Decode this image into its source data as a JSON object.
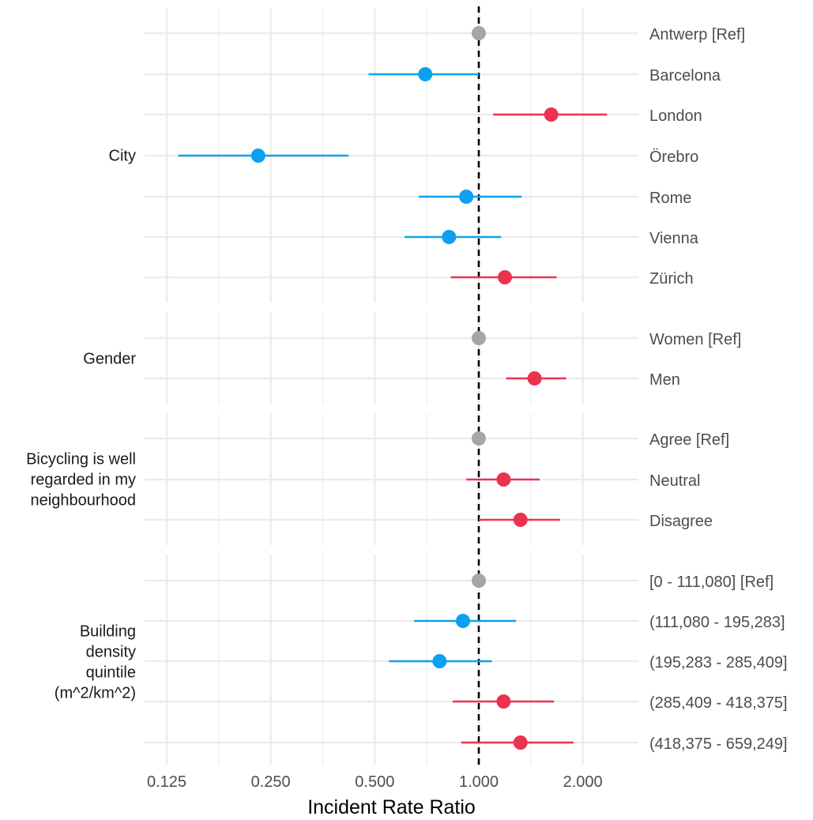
{
  "chart_data": {
    "type": "forest",
    "xlabel": "Incident Rate Ratio",
    "x_scale": "log2",
    "xlim": [
      0.11,
      3.5
    ],
    "x_ticks": [
      {
        "value": 0.125,
        "label": "0.125"
      },
      {
        "value": 0.25,
        "label": "0.250"
      },
      {
        "value": 0.5,
        "label": "0.500"
      },
      {
        "value": 1.0,
        "label": "1.000"
      },
      {
        "value": 2.0,
        "label": "2.000"
      }
    ],
    "reference_line": 1.0,
    "grid": true,
    "colors": {
      "reference": "#A6A6A6",
      "increase": "#EB3350",
      "decrease": "#0EA0F0",
      "grid": "#EBEBEB"
    },
    "groups": [
      {
        "label_lines": [
          "City"
        ],
        "rows": [
          {
            "label": "Antwerp [Ref]",
            "estimate": 1.0,
            "lower": null,
            "upper": null,
            "direction": "reference"
          },
          {
            "label": "Barcelona",
            "estimate": 0.7,
            "lower": 0.48,
            "upper": 1.0,
            "direction": "decrease"
          },
          {
            "label": "London",
            "estimate": 1.62,
            "lower": 1.1,
            "upper": 2.35,
            "direction": "increase"
          },
          {
            "label": "Örebro",
            "estimate": 0.23,
            "lower": 0.135,
            "upper": 0.42,
            "direction": "decrease"
          },
          {
            "label": "Rome",
            "estimate": 0.92,
            "lower": 0.67,
            "upper": 1.33,
            "direction": "decrease"
          },
          {
            "label": "Vienna",
            "estimate": 0.82,
            "lower": 0.61,
            "upper": 1.16,
            "direction": "decrease"
          },
          {
            "label": "Zürich",
            "estimate": 1.19,
            "lower": 0.83,
            "upper": 1.68,
            "direction": "increase"
          }
        ]
      },
      {
        "label_lines": [
          "Gender"
        ],
        "rows": [
          {
            "label": "Women [Ref]",
            "estimate": 1.0,
            "lower": null,
            "upper": null,
            "direction": "reference"
          },
          {
            "label": "Men",
            "estimate": 1.45,
            "lower": 1.2,
            "upper": 1.79,
            "direction": "increase"
          }
        ]
      },
      {
        "label_lines": [
          "Bicycling is well",
          "regarded in my",
          "neighbourhood"
        ],
        "rows": [
          {
            "label": "Agree [Ref]",
            "estimate": 1.0,
            "lower": null,
            "upper": null,
            "direction": "reference"
          },
          {
            "label": "Neutral",
            "estimate": 1.18,
            "lower": 0.92,
            "upper": 1.5,
            "direction": "increase"
          },
          {
            "label": "Disagree",
            "estimate": 1.32,
            "lower": 1.0,
            "upper": 1.72,
            "direction": "increase"
          }
        ]
      },
      {
        "label_lines": [
          "Building",
          "density",
          "quintile",
          "(m^2/km^2)"
        ],
        "rows": [
          {
            "label": "[0 - 111,080] [Ref]",
            "estimate": 1.0,
            "lower": null,
            "upper": null,
            "direction": "reference"
          },
          {
            "label": "(111,080 - 195,283]",
            "estimate": 0.9,
            "lower": 0.65,
            "upper": 1.28,
            "direction": "decrease"
          },
          {
            "label": "(195,283 - 285,409]",
            "estimate": 0.77,
            "lower": 0.55,
            "upper": 1.09,
            "direction": "decrease"
          },
          {
            "label": "(285,409 - 418,375]",
            "estimate": 1.18,
            "lower": 0.84,
            "upper": 1.65,
            "direction": "increase"
          },
          {
            "label": "(418,375 - 659,249]",
            "estimate": 1.32,
            "lower": 0.89,
            "upper": 1.88,
            "direction": "increase"
          }
        ]
      }
    ]
  }
}
